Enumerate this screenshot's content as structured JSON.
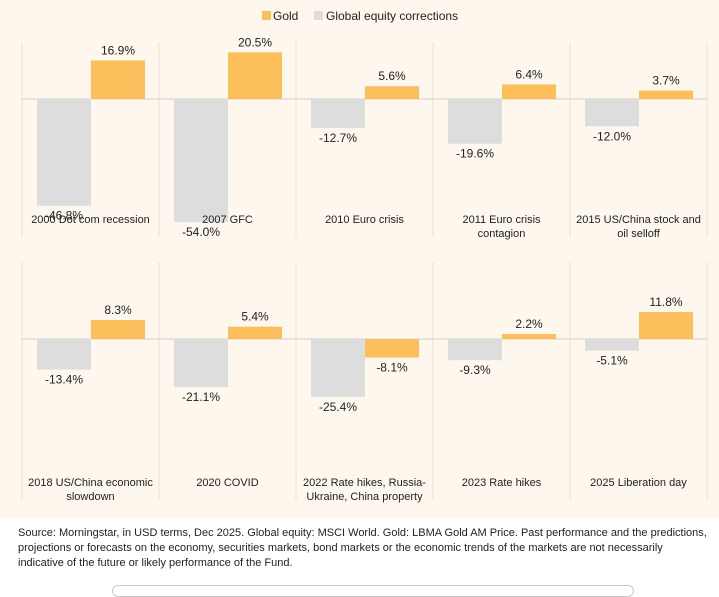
{
  "chart_data": {
    "type": "bar",
    "legend": [
      {
        "name": "Gold",
        "color": "#fdbf5b"
      },
      {
        "name": "Global equity corrections",
        "color": "#dddddd"
      }
    ],
    "legend_position": "top-center",
    "value_suffix": "%",
    "panels": [
      {
        "label_lines": [
          "2000 Dot com recession"
        ],
        "equity": -46.8,
        "gold": 16.9
      },
      {
        "label_lines": [
          "2007 GFC"
        ],
        "equity": -54.0,
        "gold": 20.5
      },
      {
        "label_lines": [
          "2010 Euro crisis"
        ],
        "equity": -12.7,
        "gold": 5.6
      },
      {
        "label_lines": [
          "2011 Euro crisis",
          "contagion"
        ],
        "equity": -19.6,
        "gold": 6.4
      },
      {
        "label_lines": [
          "2015 US/China stock and",
          "oil selloff"
        ],
        "equity": -12.0,
        "gold": 3.7
      },
      {
        "label_lines": [
          "2018 US/China economic",
          "slowdown"
        ],
        "equity": -13.4,
        "gold": 8.3
      },
      {
        "label_lines": [
          "2020 COVID"
        ],
        "equity": -21.1,
        "gold": 5.4
      },
      {
        "label_lines": [
          "2022 Rate hikes, Russia-",
          "Ukraine, China property"
        ],
        "equity": -25.4,
        "gold": -8.1
      },
      {
        "label_lines": [
          "2023 Rate hikes"
        ],
        "equity": -9.3,
        "gold": 2.2
      },
      {
        "label_lines": [
          "2025 Liberation day"
        ],
        "equity": -5.1,
        "gold": 11.8
      }
    ],
    "grid": false
  },
  "source_note": "Source: Morningstar, in USD terms, Dec 2025. Global equity: MSCI World. Gold: LBMA Gold AM Price. Past performance and the predictions, projections or forecasts on the economy, securities markets, bond markets or the economic trends of the markets are not necessarily indicative of the future or likely performance of the Fund."
}
